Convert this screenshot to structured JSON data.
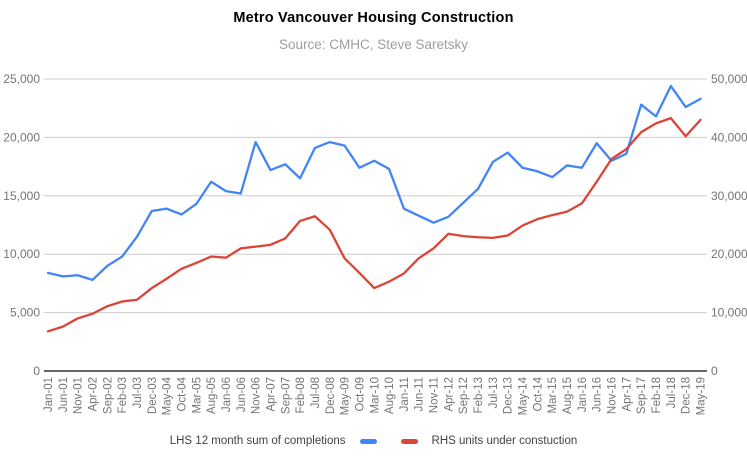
{
  "chart_data": {
    "type": "line",
    "title": "Metro Vancouver Housing Construction",
    "subtitle": "Source: CMHC, Steve Saretsky",
    "grid": true,
    "legend_position": "bottom",
    "categories": [
      "Jan-01",
      "Jun-01",
      "Nov-01",
      "Apr-02",
      "Sep-02",
      "Feb-03",
      "Jul-03",
      "Dec-03",
      "May-04",
      "Oct-04",
      "Mar-05",
      "Aug-05",
      "Jan-06",
      "Jun-06",
      "Nov-06",
      "Apr-07",
      "Sep-07",
      "Feb-08",
      "Jul-08",
      "Dec-08",
      "May-09",
      "Oct-09",
      "Mar-10",
      "Aug-10",
      "Jan-11",
      "Jun-11",
      "Nov-11",
      "Apr-12",
      "Sep-12",
      "Feb-13",
      "Jul-13",
      "Dec-13",
      "May-14",
      "Oct-14",
      "Mar-15",
      "Aug-15",
      "Jan-16",
      "Jun-16",
      "Nov-16",
      "Apr-17",
      "Sep-17",
      "Feb-18",
      "Jul-18",
      "Dec-18",
      "May-19"
    ],
    "series": [
      {
        "name": "LHS 12 month sum of completions",
        "axis": "left",
        "color": "#4285f4",
        "values": [
          8400,
          8100,
          8200,
          7800,
          9000,
          9800,
          11500,
          13700,
          13900,
          13400,
          14300,
          16200,
          15400,
          15200,
          19600,
          17200,
          17700,
          16500,
          19100,
          19600,
          19300,
          17400,
          18000,
          17300,
          13900,
          13300,
          12700,
          13200,
          14400,
          15600,
          17900,
          18700,
          17400,
          17100,
          16600,
          17600,
          17400,
          19500,
          18000,
          18600,
          22800,
          21800,
          24400,
          22600,
          23300
        ]
      },
      {
        "name": "RHS units under constuction",
        "axis": "right",
        "color": "#db4437",
        "values": [
          6800,
          7600,
          9000,
          9800,
          11100,
          11900,
          12200,
          14200,
          15800,
          17500,
          18500,
          19600,
          19400,
          21000,
          21300,
          21600,
          22700,
          25700,
          26500,
          24200,
          19300,
          16800,
          14200,
          15300,
          16700,
          19300,
          21000,
          23500,
          23100,
          22900,
          22800,
          23200,
          24900,
          26000,
          26700,
          27300,
          28700,
          32400,
          36300,
          38000,
          40900,
          42400,
          43300,
          40200,
          43000
        ]
      }
    ],
    "left_axis": {
      "min": 0,
      "max": 25000,
      "ticks": [
        "25,000",
        "20,000",
        "15,000",
        "10,000",
        "5,000",
        "0"
      ]
    },
    "right_axis": {
      "min": 0,
      "max": 50000,
      "ticks": [
        "50,000",
        "40,000",
        "30,000",
        "20,000",
        "10,000",
        "0"
      ]
    },
    "colors": {
      "grid": "#cccccc",
      "baseline": "#333333",
      "axis_text": "#757575",
      "legend_text": "#424242"
    }
  }
}
